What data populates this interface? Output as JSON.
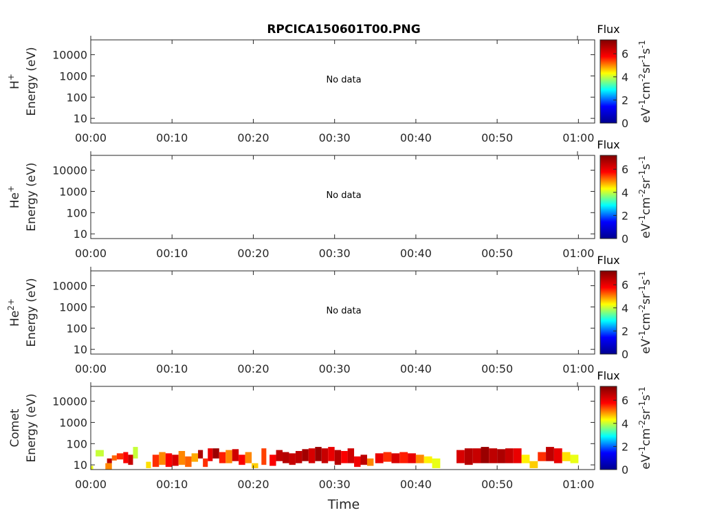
{
  "figure": {
    "title": "RPCICA150601T00.PNG",
    "xlabel": "Time"
  },
  "colorbar": {
    "title": "Flux",
    "label_parts": [
      "eV",
      "-1",
      "cm",
      "-2",
      "sr",
      "-1",
      "s",
      "-1"
    ],
    "ticks": [
      "0",
      "2",
      "4",
      "6"
    ],
    "range": [
      0,
      7.2
    ],
    "colormap": [
      "#00008f",
      "#0000ff",
      "#00ffff",
      "#ffff00",
      "#ff0000",
      "#800000"
    ]
  },
  "chart_data": [
    {
      "type": "heatmap",
      "species_base": "H",
      "species_sup": "+",
      "ylabel": "Energy (eV)",
      "ytick_labels": [
        "10",
        "100",
        "1000",
        "10000"
      ],
      "yscale": "log",
      "ylim": [
        6,
        50000
      ],
      "xtick_labels": [
        "00:00",
        "00:10",
        "00:20",
        "00:30",
        "00:40",
        "00:50",
        "01:00"
      ],
      "xlim_minutes": [
        0,
        62
      ],
      "annotation": "No data",
      "cells": []
    },
    {
      "type": "heatmap",
      "species_base": "He",
      "species_sup": "+",
      "ylabel": "Energy (eV)",
      "ytick_labels": [
        "10",
        "100",
        "1000",
        "10000"
      ],
      "yscale": "log",
      "ylim": [
        6,
        50000
      ],
      "xtick_labels": [
        "00:00",
        "00:10",
        "00:20",
        "00:30",
        "00:40",
        "00:50",
        "01:00"
      ],
      "xlim_minutes": [
        0,
        62
      ],
      "annotation": "No data",
      "cells": []
    },
    {
      "type": "heatmap",
      "species_base": "He",
      "species_sup": "2+",
      "ylabel": "Energy (eV)",
      "ytick_labels": [
        "10",
        "100",
        "1000",
        "10000"
      ],
      "yscale": "log",
      "ylim": [
        6,
        50000
      ],
      "xtick_labels": [
        "00:00",
        "00:10",
        "00:20",
        "00:30",
        "00:40",
        "00:50",
        "01:00"
      ],
      "xlim_minutes": [
        0,
        62
      ],
      "annotation": "No data",
      "cells": []
    },
    {
      "type": "heatmap",
      "species_base": "Comet",
      "species_sup": "",
      "ylabel": "Energy (eV)",
      "ytick_labels": [
        "10",
        "100",
        "1000",
        "10000"
      ],
      "yscale": "log",
      "ylim": [
        6,
        50000
      ],
      "xtick_labels": [
        "00:00",
        "00:10",
        "00:20",
        "00:30",
        "00:40",
        "00:50",
        "01:00"
      ],
      "xlim_minutes": [
        0,
        62
      ],
      "annotation": "",
      "cells": [
        {
          "t0": 0.0,
          "t1": 0.3,
          "e0": 6,
          "e1": 9,
          "flux": 4.2
        },
        {
          "t0": 0.6,
          "t1": 1.6,
          "e0": 25,
          "e1": 50,
          "flux": 4.0
        },
        {
          "t0": 1.8,
          "t1": 2.6,
          "e0": 6,
          "e1": 12,
          "flux": 5.0
        },
        {
          "t0": 2.0,
          "t1": 2.6,
          "e0": 12,
          "e1": 20,
          "flux": 6.5
        },
        {
          "t0": 2.6,
          "t1": 3.2,
          "e0": 16,
          "e1": 28,
          "flux": 5.2
        },
        {
          "t0": 3.2,
          "t1": 4.0,
          "e0": 18,
          "e1": 35,
          "flux": 5.5
        },
        {
          "t0": 4.0,
          "t1": 4.6,
          "e0": 12,
          "e1": 40,
          "flux": 5.8
        },
        {
          "t0": 4.6,
          "t1": 5.2,
          "e0": 10,
          "e1": 30,
          "flux": 6.4
        },
        {
          "t0": 5.2,
          "t1": 5.8,
          "e0": 20,
          "e1": 70,
          "flux": 4.0
        },
        {
          "t0": 6.8,
          "t1": 7.4,
          "e0": 7,
          "e1": 14,
          "flux": 4.5
        },
        {
          "t0": 7.6,
          "t1": 8.4,
          "e0": 8,
          "e1": 30,
          "flux": 5.5
        },
        {
          "t0": 8.4,
          "t1": 9.2,
          "e0": 10,
          "e1": 40,
          "flux": 5.0
        },
        {
          "t0": 9.2,
          "t1": 10.0,
          "e0": 8,
          "e1": 35,
          "flux": 5.8
        },
        {
          "t0": 10.0,
          "t1": 10.8,
          "e0": 9,
          "e1": 30,
          "flux": 6.2
        },
        {
          "t0": 10.8,
          "t1": 11.6,
          "e0": 10,
          "e1": 45,
          "flux": 5.0
        },
        {
          "t0": 11.6,
          "t1": 12.4,
          "e0": 8,
          "e1": 25,
          "flux": 5.2
        },
        {
          "t0": 12.4,
          "t1": 13.2,
          "e0": 14,
          "e1": 35,
          "flux": 4.8
        },
        {
          "t0": 13.2,
          "t1": 13.8,
          "e0": 20,
          "e1": 50,
          "flux": 6.7
        },
        {
          "t0": 13.8,
          "t1": 14.4,
          "e0": 8,
          "e1": 20,
          "flux": 5.5
        },
        {
          "t0": 14.4,
          "t1": 15.0,
          "e0": 15,
          "e1": 60,
          "flux": 6.0
        },
        {
          "t0": 15.0,
          "t1": 15.8,
          "e0": 20,
          "e1": 60,
          "flux": 6.9
        },
        {
          "t0": 15.8,
          "t1": 16.6,
          "e0": 12,
          "e1": 40,
          "flux": 5.6
        },
        {
          "t0": 16.6,
          "t1": 17.4,
          "e0": 12,
          "e1": 50,
          "flux": 5.0
        },
        {
          "t0": 17.4,
          "t1": 18.2,
          "e0": 15,
          "e1": 55,
          "flux": 6.3
        },
        {
          "t0": 18.2,
          "t1": 19.0,
          "e0": 10,
          "e1": 30,
          "flux": 5.8
        },
        {
          "t0": 19.0,
          "t1": 19.8,
          "e0": 12,
          "e1": 40,
          "flux": 5.0
        },
        {
          "t0": 19.8,
          "t1": 20.6,
          "e0": 7,
          "e1": 12,
          "flux": 4.6
        },
        {
          "t0": 21.0,
          "t1": 21.6,
          "e0": 10,
          "e1": 60,
          "flux": 5.4
        },
        {
          "t0": 22.0,
          "t1": 22.8,
          "e0": 9,
          "e1": 30,
          "flux": 5.8
        },
        {
          "t0": 22.8,
          "t1": 23.6,
          "e0": 15,
          "e1": 50,
          "flux": 6.5
        },
        {
          "t0": 23.6,
          "t1": 24.4,
          "e0": 12,
          "e1": 40,
          "flux": 6.6
        },
        {
          "t0": 24.4,
          "t1": 25.2,
          "e0": 10,
          "e1": 35,
          "flux": 6.4
        },
        {
          "t0": 25.2,
          "t1": 26.0,
          "e0": 12,
          "e1": 45,
          "flux": 6.5
        },
        {
          "t0": 26.0,
          "t1": 26.8,
          "e0": 15,
          "e1": 55,
          "flux": 6.8
        },
        {
          "t0": 26.8,
          "t1": 27.6,
          "e0": 12,
          "e1": 60,
          "flux": 6.2
        },
        {
          "t0": 27.6,
          "t1": 28.4,
          "e0": 15,
          "e1": 70,
          "flux": 6.9
        },
        {
          "t0": 28.4,
          "t1": 29.2,
          "e0": 12,
          "e1": 60,
          "flux": 6.4
        },
        {
          "t0": 29.2,
          "t1": 30.0,
          "e0": 15,
          "e1": 70,
          "flux": 6.0
        },
        {
          "t0": 30.0,
          "t1": 30.8,
          "e0": 10,
          "e1": 50,
          "flux": 6.6
        },
        {
          "t0": 30.8,
          "t1": 31.6,
          "e0": 12,
          "e1": 45,
          "flux": 5.8
        },
        {
          "t0": 31.6,
          "t1": 32.4,
          "e0": 12,
          "e1": 60,
          "flux": 6.3
        },
        {
          "t0": 32.4,
          "t1": 33.2,
          "e0": 8,
          "e1": 25,
          "flux": 5.9
        },
        {
          "t0": 33.2,
          "t1": 34.0,
          "e0": 10,
          "e1": 30,
          "flux": 6.5
        },
        {
          "t0": 34.0,
          "t1": 34.8,
          "e0": 9,
          "e1": 20,
          "flux": 5.0
        },
        {
          "t0": 35.0,
          "t1": 36.0,
          "e0": 12,
          "e1": 35,
          "flux": 6.0
        },
        {
          "t0": 36.0,
          "t1": 37.0,
          "e0": 14,
          "e1": 40,
          "flux": 5.5
        },
        {
          "t0": 37.0,
          "t1": 38.0,
          "e0": 12,
          "e1": 35,
          "flux": 6.2
        },
        {
          "t0": 38.0,
          "t1": 39.0,
          "e0": 12,
          "e1": 40,
          "flux": 5.6
        },
        {
          "t0": 39.0,
          "t1": 40.0,
          "e0": 12,
          "e1": 35,
          "flux": 6.0
        },
        {
          "t0": 40.0,
          "t1": 41.0,
          "e0": 12,
          "e1": 30,
          "flux": 5.0
        },
        {
          "t0": 41.0,
          "t1": 42.0,
          "e0": 12,
          "e1": 25,
          "flux": 4.4
        },
        {
          "t0": 42.0,
          "t1": 43.0,
          "e0": 7,
          "e1": 20,
          "flux": 4.2
        },
        {
          "t0": 45.0,
          "t1": 46.0,
          "e0": 12,
          "e1": 50,
          "flux": 6.2
        },
        {
          "t0": 46.0,
          "t1": 47.0,
          "e0": 10,
          "e1": 60,
          "flux": 6.6
        },
        {
          "t0": 47.0,
          "t1": 48.0,
          "e0": 12,
          "e1": 60,
          "flux": 6.4
        },
        {
          "t0": 48.0,
          "t1": 49.0,
          "e0": 12,
          "e1": 70,
          "flux": 6.9
        },
        {
          "t0": 49.0,
          "t1": 50.0,
          "e0": 12,
          "e1": 60,
          "flux": 6.5
        },
        {
          "t0": 50.0,
          "t1": 51.0,
          "e0": 12,
          "e1": 55,
          "flux": 6.7
        },
        {
          "t0": 51.0,
          "t1": 52.0,
          "e0": 12,
          "e1": 60,
          "flux": 6.4
        },
        {
          "t0": 52.0,
          "t1": 53.0,
          "e0": 12,
          "e1": 60,
          "flux": 6.0
        },
        {
          "t0": 53.0,
          "t1": 54.0,
          "e0": 12,
          "e1": 30,
          "flux": 4.4
        },
        {
          "t0": 54.0,
          "t1": 55.0,
          "e0": 7,
          "e1": 15,
          "flux": 4.6
        },
        {
          "t0": 55.0,
          "t1": 56.0,
          "e0": 15,
          "e1": 40,
          "flux": 5.5
        },
        {
          "t0": 56.0,
          "t1": 57.0,
          "e0": 15,
          "e1": 70,
          "flux": 6.5
        },
        {
          "t0": 57.0,
          "t1": 58.0,
          "e0": 12,
          "e1": 60,
          "flux": 6.0
        },
        {
          "t0": 58.0,
          "t1": 59.0,
          "e0": 15,
          "e1": 40,
          "flux": 4.5
        },
        {
          "t0": 59.0,
          "t1": 60.0,
          "e0": 12,
          "e1": 30,
          "flux": 4.2
        }
      ]
    }
  ]
}
